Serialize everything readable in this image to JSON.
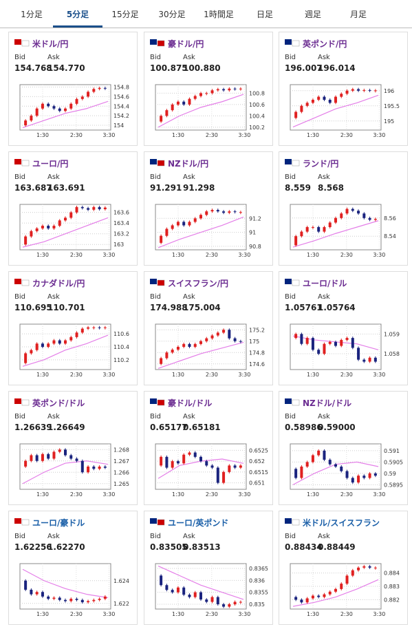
{
  "tabs": [
    "1分足",
    "5分足",
    "15分足",
    "30分足",
    "1時間足",
    "日足",
    "週足",
    "月足"
  ],
  "active_tab": 1,
  "bid_label": "Bid",
  "ask_label": "Ask",
  "time_labels": [
    "1:30",
    "2:30",
    "3:30"
  ],
  "cards": [
    {
      "name": "米ドル/円",
      "bid": "154.768",
      "ask": "154.770",
      "chart": {
        "ylim": [
          153.9,
          154.85
        ],
        "yticks": [
          154,
          154.2,
          154.4,
          154.6,
          154.8
        ],
        "values": [
          154.0,
          154.1,
          154.2,
          154.35,
          154.45,
          154.4,
          154.35,
          154.3,
          154.35,
          154.45,
          154.55,
          154.6,
          154.7,
          154.76,
          154.78,
          154.77
        ],
        "ma": [
          153.95,
          154.1,
          154.25,
          154.35,
          154.5
        ]
      }
    },
    {
      "name": "豪ドル/円",
      "bid": "100.875",
      "ask": "100.880",
      "chart": {
        "ylim": [
          100.15,
          100.95
        ],
        "yticks": [
          100.2,
          100.4,
          100.6,
          100.8
        ],
        "values": [
          100.3,
          100.4,
          100.5,
          100.6,
          100.65,
          100.6,
          100.7,
          100.75,
          100.8,
          100.8,
          100.85,
          100.87,
          100.85,
          100.88,
          100.87,
          100.88
        ],
        "ma": [
          100.2,
          100.4,
          100.55,
          100.65,
          100.78
        ]
      }
    },
    {
      "name": "英ポンド/円",
      "bid": "196.007",
      "ask": "196.014",
      "chart": {
        "ylim": [
          194.7,
          196.2
        ],
        "yticks": [
          195,
          195.5,
          196
        ],
        "values": [
          195.1,
          195.3,
          195.5,
          195.6,
          195.7,
          195.8,
          195.7,
          195.6,
          195.8,
          195.9,
          196.0,
          196.05,
          196.0,
          196.02,
          196.0,
          196.01
        ],
        "ma": [
          194.8,
          195.1,
          195.4,
          195.6,
          195.85
        ]
      }
    },
    {
      "name": "ユーロ/円",
      "bid": "163.687",
      "ask": "163.691",
      "chart": {
        "ylim": [
          162.9,
          163.75
        ],
        "yticks": [
          163,
          163.2,
          163.4,
          163.6
        ],
        "values": [
          163.0,
          163.15,
          163.25,
          163.3,
          163.35,
          163.3,
          163.35,
          163.45,
          163.5,
          163.6,
          163.7,
          163.68,
          163.65,
          163.7,
          163.66,
          163.69
        ],
        "ma": [
          162.95,
          163.05,
          163.2,
          163.35,
          163.5
        ]
      }
    },
    {
      "name": "NZドル/円",
      "bid": "91.291",
      "ask": "91.298",
      "chart": {
        "ylim": [
          90.75,
          91.4
        ],
        "yticks": [
          90.8,
          91,
          91.2
        ],
        "values": [
          90.85,
          90.95,
          91.05,
          91.1,
          91.15,
          91.1,
          91.15,
          91.2,
          91.25,
          91.3,
          91.32,
          91.3,
          91.28,
          91.3,
          91.29,
          91.29
        ],
        "ma": [
          90.78,
          90.9,
          91.0,
          91.1,
          91.22
        ]
      }
    },
    {
      "name": "ランド/円",
      "bid": "8.559",
      "ask": "8.568",
      "chart": {
        "ylim": [
          8.525,
          8.575
        ],
        "yticks": [
          8.54,
          8.56
        ],
        "values": [
          8.53,
          8.54,
          8.545,
          8.55,
          8.55,
          8.545,
          8.55,
          8.555,
          8.56,
          8.565,
          8.57,
          8.568,
          8.565,
          8.56,
          8.558,
          8.559
        ],
        "ma": [
          8.528,
          8.535,
          8.543,
          8.55,
          8.557
        ]
      }
    },
    {
      "name": "カナダドル/円",
      "bid": "110.695",
      "ask": "110.701",
      "chart": {
        "ylim": [
          110.05,
          110.75
        ],
        "yticks": [
          110.2,
          110.4,
          110.6
        ],
        "values": [
          110.15,
          110.3,
          110.35,
          110.45,
          110.4,
          110.45,
          110.5,
          110.45,
          110.5,
          110.55,
          110.62,
          110.68,
          110.7,
          110.7,
          110.69,
          110.7
        ],
        "ma": [
          110.1,
          110.2,
          110.35,
          110.45,
          110.58
        ]
      }
    },
    {
      "name": "スイスフラン/円",
      "bid": "174.988",
      "ask": "175.004",
      "chart": {
        "ylim": [
          174.5,
          175.3
        ],
        "yticks": [
          174.6,
          174.8,
          175,
          175.2
        ],
        "values": [
          174.6,
          174.7,
          174.8,
          174.85,
          174.9,
          174.95,
          174.9,
          174.95,
          175.0,
          175.05,
          175.1,
          175.15,
          175.2,
          175.05,
          175.0,
          174.99
        ],
        "ma": [
          174.52,
          174.65,
          174.78,
          174.88,
          174.98
        ]
      }
    },
    {
      "name": "ユーロ/ドル",
      "bid": "1.05761",
      "ask": "1.05764",
      "chart": {
        "ylim": [
          1.0572,
          1.0595
        ],
        "yticks": [
          1.058,
          1.059
        ],
        "values": [
          1.0588,
          1.059,
          1.0585,
          1.0588,
          1.0582,
          1.058,
          1.0585,
          1.0586,
          1.0584,
          1.0587,
          1.0588,
          1.0583,
          1.0577,
          1.0576,
          1.0578,
          1.0576
        ],
        "ma": [
          1.0589,
          1.0587,
          1.0586,
          1.0585,
          1.0582
        ]
      }
    },
    {
      "name": "英ポンド/ドル",
      "bid": "1.26639",
      "ask": "1.26649",
      "chart": {
        "ylim": [
          1.2645,
          1.2685
        ],
        "yticks": [
          1.265,
          1.266,
          1.267,
          1.268
        ],
        "values": [
          1.2665,
          1.267,
          1.2675,
          1.267,
          1.2676,
          1.2672,
          1.2678,
          1.268,
          1.2675,
          1.2672,
          1.267,
          1.266,
          1.2665,
          1.2663,
          1.2665,
          1.2664
        ],
        "ma": [
          1.265,
          1.266,
          1.2668,
          1.267,
          1.2667
        ]
      }
    },
    {
      "name": "豪ドル/ドル",
      "bid": "0.65177",
      "ask": "0.65181",
      "chart": {
        "ylim": [
          0.6507,
          0.6528
        ],
        "yticks": [
          0.651,
          0.6515,
          0.652,
          0.6525
        ],
        "values": [
          0.6518,
          0.6522,
          0.6517,
          0.652,
          0.6519,
          0.6523,
          0.6524,
          0.6522,
          0.652,
          0.6518,
          0.6517,
          0.651,
          0.6515,
          0.6518,
          0.6517,
          0.6518
        ],
        "ma": [
          0.6512,
          0.6518,
          0.652,
          0.6521,
          0.6519
        ]
      }
    },
    {
      "name": "NZドル/ドル",
      "bid": "0.58986",
      "ask": "0.59000",
      "chart": {
        "ylim": [
          0.5893,
          0.5913
        ],
        "yticks": [
          0.5895,
          0.59,
          0.5905,
          0.591
        ],
        "values": [
          0.5902,
          0.5898,
          0.5903,
          0.5905,
          0.5908,
          0.591,
          0.5906,
          0.5904,
          0.5903,
          0.5901,
          0.5898,
          0.5896,
          0.5899,
          0.5898,
          0.59,
          0.5899
        ],
        "ma": [
          0.5895,
          0.59,
          0.5904,
          0.5905,
          0.5903
        ]
      }
    },
    {
      "name": "ユーロ/豪ドル",
      "bid": "1.62256",
      "ask": "1.62270",
      "chart": {
        "ylim": [
          1.6215,
          1.6255
        ],
        "yticks": [
          1.622,
          1.624
        ],
        "values": [
          1.624,
          1.6232,
          1.6228,
          1.623,
          1.6226,
          1.6224,
          1.6225,
          1.6223,
          1.6222,
          1.6224,
          1.6223,
          1.6221,
          1.6222,
          1.6223,
          1.6224,
          1.6226
        ],
        "ma": [
          1.625,
          1.624,
          1.6233,
          1.6228,
          1.6225
        ]
      }
    },
    {
      "name": "ユーロ/英ポンド",
      "bid": "0.83505",
      "ask": "0.83513",
      "chart": {
        "ylim": [
          0.8348,
          0.8367
        ],
        "yticks": [
          0.835,
          0.8355,
          0.836,
          0.8365
        ],
        "values": [
          0.8362,
          0.8358,
          0.8356,
          0.8355,
          0.8357,
          0.8354,
          0.8353,
          0.8355,
          0.8352,
          0.8351,
          0.8353,
          0.835,
          0.8349,
          0.835,
          0.8351,
          0.8351
        ],
        "ma": [
          0.8366,
          0.8362,
          0.8358,
          0.8355,
          0.8352
        ]
      }
    },
    {
      "name": "米ドル/スイスフラン",
      "bid": "0.88434",
      "ask": "0.88449",
      "chart": {
        "ylim": [
          0.8813,
          0.8847
        ],
        "yticks": [
          0.882,
          0.883,
          0.884
        ],
        "values": [
          0.8822,
          0.882,
          0.8818,
          0.8821,
          0.8823,
          0.8822,
          0.8824,
          0.8826,
          0.8828,
          0.8832,
          0.8838,
          0.8842,
          0.8844,
          0.8845,
          0.8844,
          0.8844
        ],
        "ma": [
          0.8815,
          0.8818,
          0.8822,
          0.8828,
          0.8835
        ]
      }
    }
  ]
}
